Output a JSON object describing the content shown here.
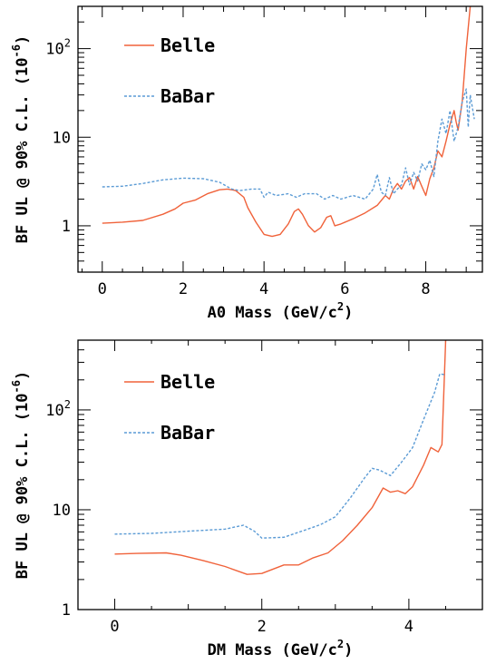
{
  "colors": {
    "belle": "#f0623a",
    "babar": "#5b9bd5",
    "axis": "#000000"
  },
  "chart_data": [
    {
      "type": "line",
      "xlabel": "A0 Mass (GeV/c",
      "xlabel_sup": "2",
      "xlabel_end": ")",
      "ylabel": "BF UL @ 90% C.L. (10",
      "ylabel_sup": "-6",
      "ylabel_end": ")",
      "y_scale": "log",
      "xlim": [
        -0.6,
        9.4
      ],
      "ylim": [
        0.3,
        300
      ],
      "x_ticks": [
        {
          "v": 0,
          "t": "0"
        },
        {
          "v": 2,
          "t": "2"
        },
        {
          "v": 4,
          "t": "4"
        },
        {
          "v": 6,
          "t": "6"
        },
        {
          "v": 8,
          "t": "8"
        }
      ],
      "y_ticks": [
        {
          "v": 1,
          "t": "1"
        },
        {
          "v": 10,
          "t": "10"
        },
        {
          "v": 100,
          "t": "10",
          "sup": "2"
        }
      ],
      "legend_placement": "top-left",
      "series": [
        {
          "name": "Belle",
          "style": "solid",
          "points": [
            [
              0,
              1.07
            ],
            [
              0.5,
              1.1
            ],
            [
              1.0,
              1.15
            ],
            [
              1.5,
              1.35
            ],
            [
              1.8,
              1.55
            ],
            [
              2.0,
              1.8
            ],
            [
              2.3,
              1.95
            ],
            [
              2.6,
              2.3
            ],
            [
              2.9,
              2.55
            ],
            [
              3.1,
              2.6
            ],
            [
              3.3,
              2.5
            ],
            [
              3.5,
              2.1
            ],
            [
              3.6,
              1.6
            ],
            [
              3.8,
              1.1
            ],
            [
              4.0,
              0.8
            ],
            [
              4.2,
              0.76
            ],
            [
              4.4,
              0.8
            ],
            [
              4.6,
              1.05
            ],
            [
              4.75,
              1.45
            ],
            [
              4.85,
              1.55
            ],
            [
              4.95,
              1.35
            ],
            [
              5.1,
              1.0
            ],
            [
              5.25,
              0.85
            ],
            [
              5.4,
              0.95
            ],
            [
              5.55,
              1.25
            ],
            [
              5.65,
              1.3
            ],
            [
              5.75,
              1.0
            ],
            [
              5.9,
              1.05
            ],
            [
              6.2,
              1.2
            ],
            [
              6.5,
              1.4
            ],
            [
              6.8,
              1.7
            ],
            [
              7.0,
              2.2
            ],
            [
              7.1,
              2.0
            ],
            [
              7.2,
              2.6
            ],
            [
              7.3,
              3.0
            ],
            [
              7.4,
              2.6
            ],
            [
              7.5,
              3.2
            ],
            [
              7.6,
              3.5
            ],
            [
              7.7,
              2.6
            ],
            [
              7.8,
              3.6
            ],
            [
              7.9,
              2.8
            ],
            [
              8.0,
              2.2
            ],
            [
              8.1,
              3.4
            ],
            [
              8.2,
              4.5
            ],
            [
              8.3,
              7
            ],
            [
              8.4,
              6
            ],
            [
              8.5,
              9
            ],
            [
              8.6,
              14
            ],
            [
              8.7,
              20
            ],
            [
              8.75,
              15
            ],
            [
              8.8,
              12
            ],
            [
              8.9,
              25
            ],
            [
              9.0,
              100
            ],
            [
              9.1,
              300
            ]
          ]
        },
        {
          "name": "BaBar",
          "style": "dashed",
          "points": [
            [
              0,
              2.75
            ],
            [
              0.5,
              2.8
            ],
            [
              1.0,
              3.0
            ],
            [
              1.5,
              3.3
            ],
            [
              2.0,
              3.45
            ],
            [
              2.5,
              3.4
            ],
            [
              2.9,
              3.1
            ],
            [
              3.2,
              2.6
            ],
            [
              3.4,
              2.5
            ],
            [
              3.7,
              2.6
            ],
            [
              3.9,
              2.6
            ],
            [
              4.0,
              2.1
            ],
            [
              4.1,
              2.4
            ],
            [
              4.3,
              2.2
            ],
            [
              4.6,
              2.3
            ],
            [
              4.8,
              2.1
            ],
            [
              5.0,
              2.3
            ],
            [
              5.3,
              2.3
            ],
            [
              5.5,
              2.0
            ],
            [
              5.7,
              2.2
            ],
            [
              5.9,
              2.0
            ],
            [
              6.2,
              2.2
            ],
            [
              6.5,
              2.0
            ],
            [
              6.7,
              2.6
            ],
            [
              6.8,
              3.8
            ],
            [
              6.9,
              2.4
            ],
            [
              7.0,
              2.2
            ],
            [
              7.1,
              3.5
            ],
            [
              7.2,
              2.3
            ],
            [
              7.3,
              2.6
            ],
            [
              7.4,
              2.9
            ],
            [
              7.5,
              4.5
            ],
            [
              7.6,
              2.9
            ],
            [
              7.7,
              4.0
            ],
            [
              7.8,
              3.2
            ],
            [
              7.9,
              5.0
            ],
            [
              8.0,
              4.3
            ],
            [
              8.1,
              5.5
            ],
            [
              8.2,
              3.6
            ],
            [
              8.3,
              9
            ],
            [
              8.4,
              16
            ],
            [
              8.5,
              11
            ],
            [
              8.6,
              20
            ],
            [
              8.7,
              9
            ],
            [
              8.8,
              13
            ],
            [
              8.9,
              25
            ],
            [
              9.0,
              35
            ],
            [
              9.05,
              13
            ],
            [
              9.1,
              30
            ],
            [
              9.2,
              16
            ]
          ]
        }
      ]
    },
    {
      "type": "line",
      "xlabel": "DM Mass (GeV/c",
      "xlabel_sup": "2",
      "xlabel_end": ")",
      "ylabel": "BF UL @ 90% C.L. (10",
      "ylabel_sup": "-6",
      "ylabel_end": ")",
      "y_scale": "log",
      "xlim": [
        -0.5,
        5.0
      ],
      "ylim": [
        1,
        500
      ],
      "x_ticks": [
        {
          "v": 0,
          "t": "0"
        },
        {
          "v": 2,
          "t": "2"
        },
        {
          "v": 4,
          "t": "4"
        }
      ],
      "y_ticks": [
        {
          "v": 1,
          "t": "1"
        },
        {
          "v": 10,
          "t": "10"
        },
        {
          "v": 100,
          "t": "10",
          "sup": "2"
        }
      ],
      "legend_placement": "top-left",
      "series": [
        {
          "name": "Belle",
          "style": "solid",
          "points": [
            [
              0,
              3.6
            ],
            [
              0.3,
              3.65
            ],
            [
              0.7,
              3.7
            ],
            [
              0.9,
              3.5
            ],
            [
              1.2,
              3.1
            ],
            [
              1.5,
              2.7
            ],
            [
              1.8,
              2.25
            ],
            [
              2.0,
              2.3
            ],
            [
              2.3,
              2.8
            ],
            [
              2.5,
              2.8
            ],
            [
              2.7,
              3.3
            ],
            [
              2.9,
              3.7
            ],
            [
              3.1,
              4.9
            ],
            [
              3.3,
              7
            ],
            [
              3.5,
              10.5
            ],
            [
              3.65,
              16.5
            ],
            [
              3.75,
              15
            ],
            [
              3.85,
              15.5
            ],
            [
              3.95,
              14.5
            ],
            [
              4.05,
              17
            ],
            [
              4.2,
              28
            ],
            [
              4.3,
              42
            ],
            [
              4.4,
              38
            ],
            [
              4.45,
              45
            ],
            [
              4.5,
              500
            ]
          ]
        },
        {
          "name": "BaBar",
          "style": "dashed",
          "points": [
            [
              0,
              5.7
            ],
            [
              0.5,
              5.8
            ],
            [
              1.0,
              6.1
            ],
            [
              1.5,
              6.4
            ],
            [
              1.75,
              7
            ],
            [
              1.9,
              6.1
            ],
            [
              2.0,
              5.2
            ],
            [
              2.3,
              5.3
            ],
            [
              2.6,
              6.3
            ],
            [
              2.8,
              7.1
            ],
            [
              3.0,
              8.5
            ],
            [
              3.2,
              13
            ],
            [
              3.4,
              21
            ],
            [
              3.5,
              26
            ],
            [
              3.6,
              25
            ],
            [
              3.75,
              22
            ],
            [
              3.9,
              30
            ],
            [
              4.05,
              42
            ],
            [
              4.2,
              80
            ],
            [
              4.35,
              150
            ],
            [
              4.42,
              230
            ],
            [
              4.5,
              225
            ]
          ]
        }
      ]
    }
  ]
}
